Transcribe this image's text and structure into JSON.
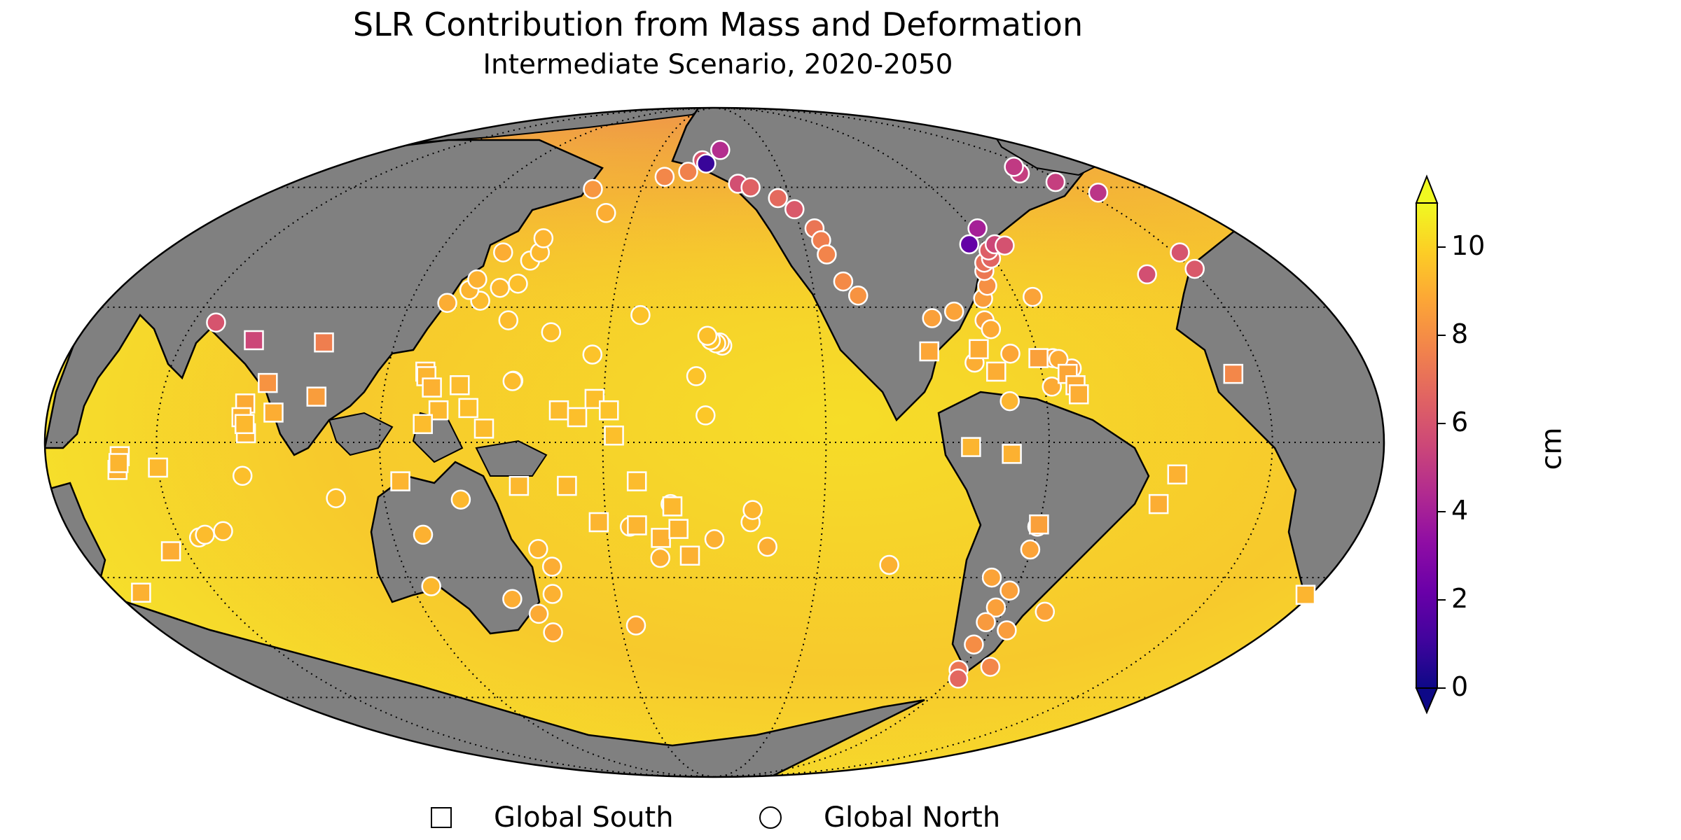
{
  "title": "SLR Contribution from Mass and Deformation",
  "subtitle": "Intermediate Scenario, 2020-2050",
  "colorbar": {
    "label": "cm",
    "min": 0,
    "max": 11,
    "ticks": [
      "0",
      "2",
      "4",
      "6",
      "8",
      "10"
    ],
    "tick_values": [
      0,
      2,
      4,
      6,
      8,
      10
    ],
    "colormap": "plasma",
    "extend": "both"
  },
  "legend": {
    "items": [
      {
        "label": "Global South",
        "marker": "square"
      },
      {
        "label": "Global North",
        "marker": "circle"
      }
    ],
    "placement": "bottom-center"
  },
  "map": {
    "projection": "Mollweide",
    "central_longitude": -160,
    "land_color": "#808080",
    "graticule": "dotted",
    "grid_lats": [
      -60,
      -30,
      0,
      30,
      60
    ],
    "grid_lons": [
      -130,
      -70,
      -10,
      50,
      110,
      170
    ]
  },
  "stations": [
    {
      "lon": 145.0,
      "lat": 13.5,
      "value": 9.3,
      "group": "north"
    },
    {
      "lon": 144.8,
      "lat": 13.4,
      "value": 9.4,
      "group": "north"
    },
    {
      "lon": 140.0,
      "lat": 35.5,
      "value": 9.5,
      "group": "north"
    },
    {
      "lon": 135.0,
      "lat": 34.5,
      "value": 9.3,
      "group": "north"
    },
    {
      "lon": 130.5,
      "lat": 31.5,
      "value": 9.4,
      "group": "north"
    },
    {
      "lon": 126.0,
      "lat": 34.0,
      "value": 9.2,
      "group": "north"
    },
    {
      "lon": 121.0,
      "lat": 31.0,
      "value": 9.0,
      "group": "north"
    },
    {
      "lon": 141.0,
      "lat": 41.0,
      "value": 9.5,
      "group": "north"
    },
    {
      "lon": 143.0,
      "lat": 43.0,
      "value": 9.3,
      "group": "north"
    },
    {
      "lon": 131.0,
      "lat": 43.0,
      "value": 9.0,
      "group": "north"
    },
    {
      "lon": 142.0,
      "lat": 46.5,
      "value": 9.2,
      "group": "north"
    },
    {
      "lon": 127.0,
      "lat": 36.5,
      "value": 9.1,
      "group": "north"
    },
    {
      "lon": 150.0,
      "lat": 59.5,
      "value": 8.3,
      "group": "north"
    },
    {
      "lon": 160.0,
      "lat": 53.0,
      "value": 9.0,
      "group": "north"
    },
    {
      "lon": 178.0,
      "lat": 63.0,
      "value": 7.8,
      "group": "north"
    },
    {
      "lon": -172.0,
      "lat": 64.5,
      "value": 7.6,
      "group": "north"
    },
    {
      "lon": -166.0,
      "lat": 68.0,
      "value": 6.0,
      "group": "north"
    },
    {
      "lon": -156.8,
      "lat": 71.3,
      "value": 4.5,
      "group": "north"
    },
    {
      "lon": -164.0,
      "lat": 67.0,
      "value": 0.9,
      "group": "north"
    },
    {
      "lon": -150.0,
      "lat": 61.0,
      "value": 5.8,
      "group": "north"
    },
    {
      "lon": -145.0,
      "lat": 60.0,
      "value": 6.5,
      "group": "north"
    },
    {
      "lon": -135.0,
      "lat": 57.0,
      "value": 6.8,
      "group": "north"
    },
    {
      "lon": -130.0,
      "lat": 54.0,
      "value": 6.2,
      "group": "north"
    },
    {
      "lon": -125.0,
      "lat": 49.0,
      "value": 7.2,
      "group": "north"
    },
    {
      "lon": -124.0,
      "lat": 46.0,
      "value": 7.5,
      "group": "north"
    },
    {
      "lon": -123.5,
      "lat": 42.5,
      "value": 7.7,
      "group": "north"
    },
    {
      "lon": -120.5,
      "lat": 36.0,
      "value": 7.9,
      "group": "north"
    },
    {
      "lon": -117.0,
      "lat": 32.7,
      "value": 8.2,
      "group": "north"
    },
    {
      "lon": -157.8,
      "lat": 21.3,
      "value": 9.4,
      "group": "north"
    },
    {
      "lon": -158.5,
      "lat": 22.0,
      "value": 9.3,
      "group": "north"
    },
    {
      "lon": -159.5,
      "lat": 21.8,
      "value": 9.5,
      "group": "north"
    },
    {
      "lon": -161.0,
      "lat": 22.5,
      "value": 9.6,
      "group": "north"
    },
    {
      "lon": -162.0,
      "lat": 23.5,
      "value": 9.5,
      "group": "north"
    },
    {
      "lon": -165.0,
      "lat": 14.5,
      "value": 9.6,
      "group": "north"
    },
    {
      "lon": -162.4,
      "lat": 5.9,
      "value": 9.7,
      "group": "north"
    },
    {
      "lon": 166.0,
      "lat": 19.3,
      "value": 9.6,
      "group": "north"
    },
    {
      "lon": 140.5,
      "lat": 27.0,
      "value": 9.4,
      "group": "north"
    },
    {
      "lon": 153.5,
      "lat": 24.3,
      "value": 9.5,
      "group": "north"
    },
    {
      "lon": 178.5,
      "lat": 28.2,
      "value": 9.6,
      "group": "north"
    },
    {
      "lon": -90.0,
      "lat": 29.0,
      "value": 8.7,
      "group": "north"
    },
    {
      "lon": -97.0,
      "lat": 27.5,
      "value": 8.6,
      "group": "north"
    },
    {
      "lon": -82.0,
      "lat": 27.0,
      "value": 8.6,
      "group": "north"
    },
    {
      "lon": -81.0,
      "lat": 25.0,
      "value": 8.9,
      "group": "north"
    },
    {
      "lon": -80.0,
      "lat": 32.0,
      "value": 8.5,
      "group": "north"
    },
    {
      "lon": -77.0,
      "lat": 35.0,
      "value": 8.1,
      "group": "north"
    },
    {
      "lon": -75.5,
      "lat": 38.5,
      "value": 7.3,
      "group": "north"
    },
    {
      "lon": -74.0,
      "lat": 40.5,
      "value": 7.0,
      "group": "north"
    },
    {
      "lon": -71.0,
      "lat": 41.5,
      "value": 6.6,
      "group": "north"
    },
    {
      "lon": -70.0,
      "lat": 43.5,
      "value": 6.4,
      "group": "north"
    },
    {
      "lon": -65.0,
      "lat": 32.4,
      "value": 8.7,
      "group": "north"
    },
    {
      "lon": -66.5,
      "lat": 45.0,
      "value": 5.5,
      "group": "north"
    },
    {
      "lon": -63.5,
      "lat": 44.7,
      "value": 5.9,
      "group": "north"
    },
    {
      "lon": -68.0,
      "lat": 49.0,
      "value": 4.0,
      "group": "north"
    },
    {
      "lon": -75.0,
      "lat": 45.0,
      "value": 2.0,
      "group": "north"
    },
    {
      "lon": -66.0,
      "lat": 18.5,
      "value": 8.7,
      "group": "north"
    },
    {
      "lon": -68.0,
      "lat": 12.2,
      "value": 8.9,
      "group": "north"
    },
    {
      "lon": -61.5,
      "lat": 16.2,
      "value": 8.5,
      "group": "north"
    },
    {
      "lon": -64.5,
      "lat": 18.3,
      "value": 8.9,
      "group": "north"
    },
    {
      "lon": -80.0,
      "lat": 9.0,
      "value": 9.2,
      "group": "north"
    },
    {
      "lon": -77.5,
      "lat": 19.5,
      "value": 8.8,
      "group": "north"
    },
    {
      "lon": -88.0,
      "lat": 17.5,
      "value": 9.0,
      "group": "north"
    },
    {
      "lon": -22.0,
      "lat": 64.0,
      "value": 5.2,
      "group": "north"
    },
    {
      "lon": -18.0,
      "lat": 66.0,
      "value": 5.0,
      "group": "north"
    },
    {
      "lon": -25.5,
      "lat": 37.7,
      "value": 5.8,
      "group": "north"
    },
    {
      "lon": -8.0,
      "lat": 43.0,
      "value": 6.0,
      "group": "north"
    },
    {
      "lon": -9.0,
      "lat": 39.0,
      "value": 6.2,
      "group": "north"
    },
    {
      "lon": -14.0,
      "lat": 61.5,
      "value": 5.2,
      "group": "north"
    },
    {
      "lon": -5.0,
      "lat": 58.5,
      "value": 4.8,
      "group": "north"
    },
    {
      "lon": 56.5,
      "lat": 26.5,
      "value": 6.0,
      "group": "north"
    },
    {
      "lon": -150.0,
      "lat": -17.5,
      "value": 9.4,
      "group": "north"
    },
    {
      "lon": -149.5,
      "lat": -14.8,
      "value": 9.2,
      "group": "north"
    },
    {
      "lon": -145.0,
      "lat": -23.0,
      "value": 9.0,
      "group": "north"
    },
    {
      "lon": -172.0,
      "lat": -13.5,
      "value": 9.3,
      "group": "north"
    },
    {
      "lon": 176.5,
      "lat": -18.5,
      "value": 9.2,
      "group": "north"
    },
    {
      "lon": -175.5,
      "lat": -25.5,
      "value": 9.1,
      "group": "north"
    },
    {
      "lon": -160.0,
      "lat": -21.3,
      "value": 9.1,
      "group": "north"
    },
    {
      "lon": 115.7,
      "lat": -32.0,
      "value": 9.3,
      "group": "north"
    },
    {
      "lon": 118.5,
      "lat": -20.3,
      "value": 9.1,
      "group": "north"
    },
    {
      "lon": 130.8,
      "lat": -12.5,
      "value": 9.3,
      "group": "north"
    },
    {
      "lon": 153.0,
      "lat": -27.5,
      "value": 9.0,
      "group": "north"
    },
    {
      "lon": 151.2,
      "lat": -33.8,
      "value": 9.1,
      "group": "north"
    },
    {
      "lon": 145.0,
      "lat": -38.5,
      "value": 8.9,
      "group": "north"
    },
    {
      "lon": 147.3,
      "lat": -43.0,
      "value": 8.8,
      "group": "north"
    },
    {
      "lon": 138.5,
      "lat": -35.0,
      "value": 9.0,
      "group": "north"
    },
    {
      "lon": 150.0,
      "lat": -23.5,
      "value": 9.2,
      "group": "north"
    },
    {
      "lon": 174.8,
      "lat": -41.3,
      "value": 8.8,
      "group": "north"
    },
    {
      "lon": -109.5,
      "lat": -27.1,
      "value": 9.1,
      "group": "north"
    },
    {
      "lon": 72.5,
      "lat": -7.3,
      "value": 9.5,
      "group": "north"
    },
    {
      "lon": 55.5,
      "lat": -20.9,
      "value": 9.5,
      "group": "north"
    },
    {
      "lon": 57.5,
      "lat": -20.3,
      "value": 9.4,
      "group": "north"
    },
    {
      "lon": 63.0,
      "lat": -19.5,
      "value": 9.3,
      "group": "north"
    },
    {
      "lon": 96.8,
      "lat": -12.2,
      "value": 9.5,
      "group": "north"
    },
    {
      "lon": -73.0,
      "lat": -37.0,
      "value": 8.6,
      "group": "north"
    },
    {
      "lon": -71.5,
      "lat": -33.0,
      "value": 8.6,
      "group": "north"
    },
    {
      "lon": -70.4,
      "lat": -23.6,
      "value": 8.7,
      "group": "north"
    },
    {
      "lon": -73.5,
      "lat": -40.5,
      "value": 8.4,
      "group": "north"
    },
    {
      "lon": -72.5,
      "lat": -46.0,
      "value": 8.0,
      "group": "north"
    },
    {
      "lon": -70.5,
      "lat": -52.5,
      "value": 7.2,
      "group": "north"
    },
    {
      "lon": -67.5,
      "lat": -54.8,
      "value": 6.7,
      "group": "north"
    },
    {
      "lon": -60.0,
      "lat": -51.7,
      "value": 7.8,
      "group": "north"
    },
    {
      "lon": -65.0,
      "lat": -42.5,
      "value": 8.5,
      "group": "north"
    },
    {
      "lon": -57.0,
      "lat": -38.0,
      "value": 8.7,
      "group": "north"
    },
    {
      "lon": -78.5,
      "lat": -30.0,
      "value": 8.7,
      "group": "north"
    },
    {
      "lon": -70.3,
      "lat": -18.5,
      "value": 8.8,
      "group": "north"
    },
    {
      "lon": 78.0,
      "lat": 13.0,
      "value": 8.2,
      "group": "south"
    },
    {
      "lon": 70.0,
      "lat": 22.5,
      "value": 5.5,
      "group": "south"
    },
    {
      "lon": 73.0,
      "lat": 8.5,
      "value": 8.9,
      "group": "south"
    },
    {
      "lon": 72.5,
      "lat": 5.5,
      "value": 9.1,
      "group": "south"
    },
    {
      "lon": 74.0,
      "lat": 2.0,
      "value": 9.2,
      "group": "south"
    },
    {
      "lon": 73.5,
      "lat": 4.0,
      "value": 9.3,
      "group": "south"
    },
    {
      "lon": 81.0,
      "lat": 6.5,
      "value": 9.0,
      "group": "south"
    },
    {
      "lon": 90.0,
      "lat": 22.0,
      "value": 7.5,
      "group": "south"
    },
    {
      "lon": 92.0,
      "lat": 10.0,
      "value": 8.5,
      "group": "south"
    },
    {
      "lon": 120.5,
      "lat": 15.5,
      "value": 9.1,
      "group": "south"
    },
    {
      "lon": 121.0,
      "lat": 14.5,
      "value": 9.2,
      "group": "south"
    },
    {
      "lon": 123.0,
      "lat": 12.0,
      "value": 9.1,
      "group": "south"
    },
    {
      "lon": 125.5,
      "lat": 7.0,
      "value": 9.3,
      "group": "south"
    },
    {
      "lon": 121.5,
      "lat": 4.0,
      "value": 9.4,
      "group": "south"
    },
    {
      "lon": 130.5,
      "lat": 12.5,
      "value": 9.4,
      "group": "south"
    },
    {
      "lon": 133.5,
      "lat": 7.5,
      "value": 9.5,
      "group": "south"
    },
    {
      "lon": 138.0,
      "lat": 3.0,
      "value": 9.4,
      "group": "south"
    },
    {
      "lon": 115.0,
      "lat": -8.5,
      "value": 9.2,
      "group": "south"
    },
    {
      "lon": 147.0,
      "lat": -9.5,
      "value": 9.3,
      "group": "south"
    },
    {
      "lon": 158.0,
      "lat": 7.0,
      "value": 9.4,
      "group": "south"
    },
    {
      "lon": 163.0,
      "lat": 5.5,
      "value": 9.5,
      "group": "south"
    },
    {
      "lon": 167.5,
      "lat": 9.5,
      "value": 9.5,
      "group": "south"
    },
    {
      "lon": 171.5,
      "lat": 7.0,
      "value": 9.6,
      "group": "south"
    },
    {
      "lon": 173.0,
      "lat": 1.5,
      "value": 9.5,
      "group": "south"
    },
    {
      "lon": 160.0,
      "lat": -9.5,
      "value": 9.3,
      "group": "south"
    },
    {
      "lon": 168.0,
      "lat": -17.5,
      "value": 9.2,
      "group": "south"
    },
    {
      "lon": 179.0,
      "lat": -8.5,
      "value": 9.4,
      "group": "south"
    },
    {
      "lon": 178.5,
      "lat": -18.2,
      "value": 9.2,
      "group": "south"
    },
    {
      "lon": -175.0,
      "lat": -21.0,
      "value": 9.1,
      "group": "south"
    },
    {
      "lon": -171.5,
      "lat": -14.0,
      "value": 9.3,
      "group": "south"
    },
    {
      "lon": -170.0,
      "lat": -19.0,
      "value": 9.2,
      "group": "south"
    },
    {
      "lon": -167.0,
      "lat": -25.0,
      "value": 9.1,
      "group": "south"
    },
    {
      "lon": -100.0,
      "lat": 20.0,
      "value": 8.8,
      "group": "south"
    },
    {
      "lon": -86.0,
      "lat": 20.5,
      "value": 8.9,
      "group": "south"
    },
    {
      "lon": -82.5,
      "lat": 15.5,
      "value": 9.0,
      "group": "south"
    },
    {
      "lon": -70.0,
      "lat": 18.5,
      "value": 8.6,
      "group": "south"
    },
    {
      "lon": -63.0,
      "lat": 15.0,
      "value": 8.8,
      "group": "south"
    },
    {
      "lon": -61.5,
      "lat": 12.5,
      "value": 8.9,
      "group": "south"
    },
    {
      "lon": -61.0,
      "lat": 10.5,
      "value": 9.0,
      "group": "south"
    },
    {
      "lon": -91.0,
      "lat": -1.0,
      "value": 9.2,
      "group": "south"
    },
    {
      "lon": -80.0,
      "lat": -2.5,
      "value": 9.1,
      "group": "south"
    },
    {
      "lon": -70.0,
      "lat": -18.0,
      "value": 8.6,
      "group": "south"
    },
    {
      "lon": -35.0,
      "lat": -7.0,
      "value": 9.1,
      "group": "south"
    },
    {
      "lon": -38.5,
      "lat": -13.5,
      "value": 9.0,
      "group": "south"
    },
    {
      "lon": -17.5,
      "lat": 15.0,
      "value": 7.8,
      "group": "south"
    },
    {
      "lon": 18.5,
      "lat": -34.0,
      "value": 9.2,
      "group": "south"
    },
    {
      "lon": 27.5,
      "lat": -33.5,
      "value": 9.1,
      "group": "south"
    },
    {
      "lon": 40.0,
      "lat": -3.0,
      "value": 9.2,
      "group": "south"
    },
    {
      "lon": 39.0,
      "lat": -6.0,
      "value": 9.1,
      "group": "south"
    },
    {
      "lon": 39.5,
      "lat": -4.5,
      "value": 9.2,
      "group": "south"
    },
    {
      "lon": 45.5,
      "lat": -24.0,
      "value": 9.0,
      "group": "south"
    },
    {
      "lon": 50.0,
      "lat": -5.5,
      "value": 9.3,
      "group": "south"
    }
  ]
}
